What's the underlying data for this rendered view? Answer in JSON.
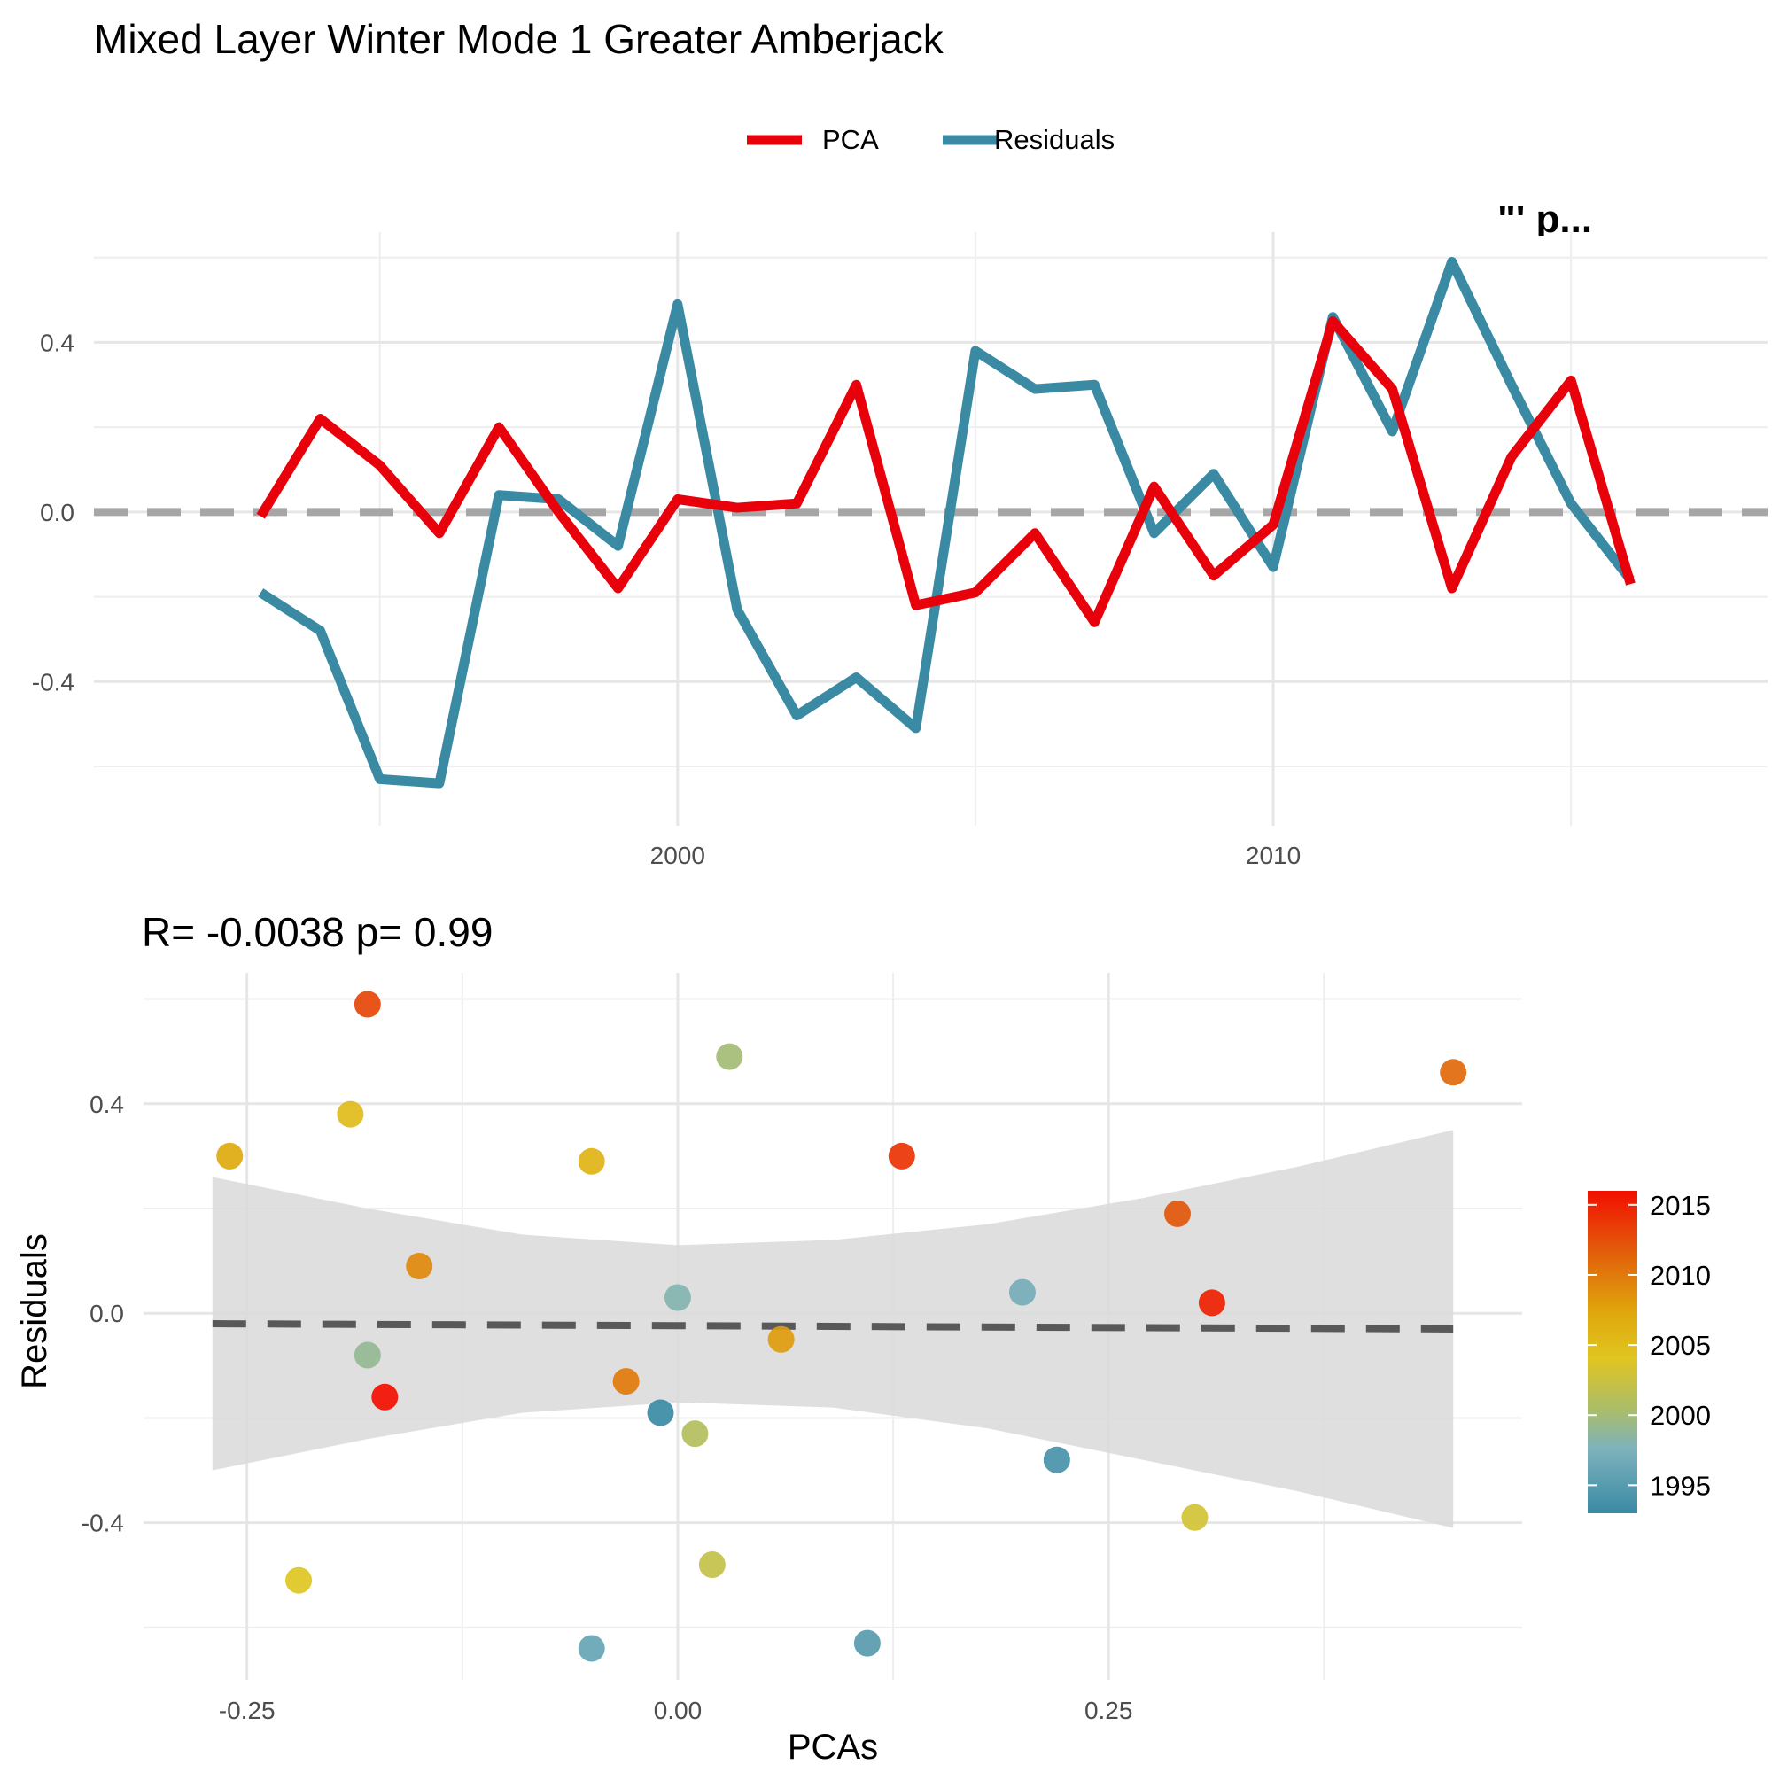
{
  "title": "Mixed Layer Winter Mode 1 Greater Amberjack",
  "colors": {
    "pca": "#e8000b",
    "residuals": "#3a8aa4",
    "zero_line": "#a6a6a6",
    "fit_line": "#595959",
    "ribbon": "#d9d9d9"
  },
  "chart_data": [
    {
      "type": "line",
      "legend": {
        "position": "top",
        "entries": [
          "PCA",
          "Residuals"
        ]
      },
      "corner_annotation": "\"' p...",
      "x": [
        1993,
        1994,
        1995,
        1996,
        1997,
        1998,
        1999,
        2000,
        2001,
        2002,
        2003,
        2004,
        2005,
        2006,
        2007,
        2008,
        2009,
        2010,
        2011,
        2012,
        2013,
        2014,
        2015,
        2016
      ],
      "series": [
        {
          "name": "PCA",
          "values": [
            -0.01,
            0.22,
            0.11,
            -0.05,
            0.2,
            0.0,
            -0.18,
            0.03,
            0.01,
            0.02,
            0.3,
            -0.22,
            -0.19,
            -0.05,
            -0.26,
            0.06,
            -0.15,
            -0.03,
            0.45,
            0.29,
            -0.18,
            0.13,
            0.31,
            -0.17
          ]
        },
        {
          "name": "Residuals",
          "values": [
            -0.19,
            -0.28,
            -0.63,
            -0.64,
            0.04,
            0.03,
            -0.08,
            0.49,
            -0.23,
            -0.48,
            -0.39,
            -0.51,
            0.38,
            0.29,
            0.3,
            -0.05,
            0.09,
            -0.13,
            0.46,
            0.19,
            0.59,
            0.3,
            0.02,
            -0.16
          ]
        }
      ],
      "xlim": [
        1990.2,
        2018.3
      ],
      "ylim": [
        -0.74,
        0.66
      ],
      "x_ticks": [
        2000,
        2010
      ],
      "y_ticks": [
        0.4,
        0.0,
        -0.4
      ],
      "y_tick_labels": [
        "0.4",
        "0.0",
        "-0.4"
      ],
      "x_tick_labels": [
        "2000",
        "2010"
      ],
      "reference_line": 0,
      "grid": true
    },
    {
      "type": "scatter",
      "title": "R= -0.0038  p= 0.99",
      "xlabel": "PCAs",
      "ylabel": "Residuals",
      "x_ticks": [
        -0.25,
        0.0,
        0.25
      ],
      "x_tick_labels": [
        "-0.25",
        "0.00",
        "0.25"
      ],
      "y_ticks": [
        0.4,
        0.0,
        -0.4
      ],
      "y_tick_labels": [
        "0.4",
        "0.0",
        "-0.4"
      ],
      "xlim": [
        -0.31,
        0.49
      ],
      "ylim": [
        -0.7,
        0.65
      ],
      "grid": true,
      "points": [
        {
          "x": -0.01,
          "y": -0.19,
          "year": 1993
        },
        {
          "x": 0.22,
          "y": -0.28,
          "year": 1994
        },
        {
          "x": 0.11,
          "y": -0.63,
          "year": 1995
        },
        {
          "x": -0.05,
          "y": -0.64,
          "year": 1996
        },
        {
          "x": 0.2,
          "y": 0.04,
          "year": 1997
        },
        {
          "x": 0.0,
          "y": 0.03,
          "year": 1998
        },
        {
          "x": -0.18,
          "y": -0.08,
          "year": 1999
        },
        {
          "x": 0.03,
          "y": 0.49,
          "year": 2000
        },
        {
          "x": 0.01,
          "y": -0.23,
          "year": 2001
        },
        {
          "x": 0.02,
          "y": -0.48,
          "year": 2002
        },
        {
          "x": 0.3,
          "y": -0.39,
          "year": 2003
        },
        {
          "x": -0.22,
          "y": -0.51,
          "year": 2004
        },
        {
          "x": -0.19,
          "y": 0.38,
          "year": 2005
        },
        {
          "x": -0.05,
          "y": 0.29,
          "year": 2006
        },
        {
          "x": -0.26,
          "y": 0.3,
          "year": 2007
        },
        {
          "x": 0.06,
          "y": -0.05,
          "year": 2008
        },
        {
          "x": -0.15,
          "y": 0.09,
          "year": 2009
        },
        {
          "x": -0.03,
          "y": -0.13,
          "year": 2010
        },
        {
          "x": 0.45,
          "y": 0.46,
          "year": 2011
        },
        {
          "x": 0.29,
          "y": 0.19,
          "year": 2012
        },
        {
          "x": -0.18,
          "y": 0.59,
          "year": 2013
        },
        {
          "x": 0.13,
          "y": 0.3,
          "year": 2014
        },
        {
          "x": 0.31,
          "y": 0.02,
          "year": 2015
        },
        {
          "x": -0.17,
          "y": -0.16,
          "year": 2016
        }
      ],
      "fit": {
        "x_range": [
          -0.27,
          0.45
        ],
        "y_start": -0.02,
        "y_end": -0.03
      },
      "ribbon": {
        "x": [
          -0.27,
          -0.18,
          -0.09,
          0.0,
          0.09,
          0.18,
          0.27,
          0.36,
          0.45
        ],
        "upper": [
          0.26,
          0.2,
          0.15,
          0.13,
          0.14,
          0.17,
          0.22,
          0.28,
          0.35
        ],
        "lower": [
          -0.3,
          -0.24,
          -0.19,
          -0.17,
          -0.18,
          -0.22,
          -0.28,
          -0.34,
          -0.41
        ]
      },
      "colorbar": {
        "ticks": [
          2015,
          2010,
          2005,
          2000,
          1995
        ],
        "tick_labels": [
          "2015",
          "2010",
          "2005",
          "2000",
          "1995"
        ],
        "range": [
          1993,
          2016
        ]
      }
    }
  ]
}
